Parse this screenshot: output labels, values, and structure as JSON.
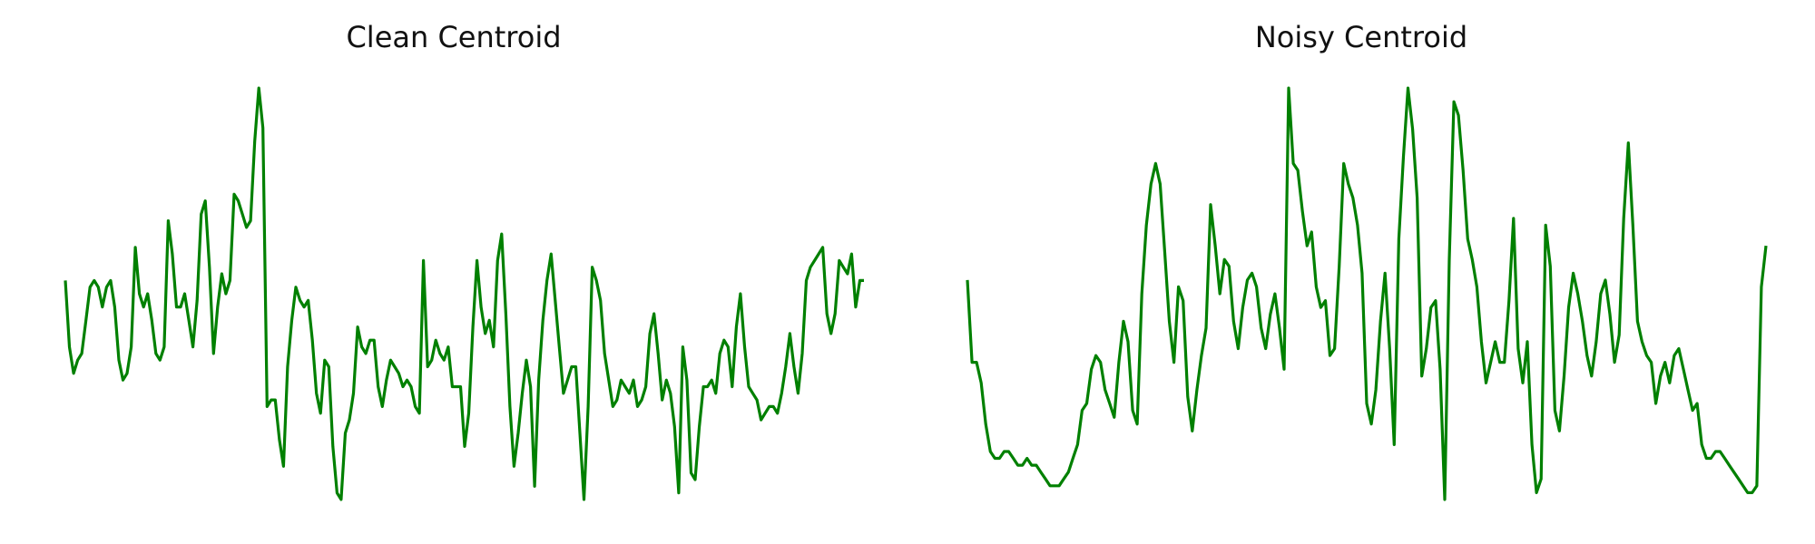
{
  "chart_data": [
    {
      "type": "line",
      "title": "Clean Centroid",
      "xlabel": "",
      "ylabel": "",
      "axes_visible": false,
      "grid": false,
      "line_color": "#008000",
      "series": [
        {
          "values": [
            0.55,
            0.45,
            0.41,
            0.43,
            0.44,
            0.49,
            0.54,
            0.55,
            0.54,
            0.51,
            0.54,
            0.55,
            0.51,
            0.43,
            0.4,
            0.41,
            0.45,
            0.6,
            0.53,
            0.51,
            0.53,
            0.49,
            0.44,
            0.43,
            0.45,
            0.64,
            0.59,
            0.51,
            0.51,
            0.53,
            0.49,
            0.45,
            0.52,
            0.65,
            0.67,
            0.57,
            0.44,
            0.51,
            0.56,
            0.53,
            0.55,
            0.68,
            0.67,
            0.65,
            0.63,
            0.64,
            0.76,
            0.84,
            0.78,
            0.36,
            0.37,
            0.37,
            0.31,
            0.27,
            0.42,
            0.49,
            0.54,
            0.52,
            0.51,
            0.52,
            0.46,
            0.38,
            0.35,
            0.43,
            0.42,
            0.3,
            0.23,
            0.22,
            0.32,
            0.34,
            0.38,
            0.48,
            0.45,
            0.44,
            0.46,
            0.46,
            0.39,
            0.36,
            0.4,
            0.43,
            0.42,
            0.41,
            0.39,
            0.4,
            0.39,
            0.36,
            0.35,
            0.58,
            0.42,
            0.43,
            0.46,
            0.44,
            0.43,
            0.45,
            0.39,
            0.39,
            0.39,
            0.3,
            0.35,
            0.48,
            0.58,
            0.51,
            0.47,
            0.49,
            0.45,
            0.58,
            0.62,
            0.5,
            0.36,
            0.27,
            0.32,
            0.38,
            0.43,
            0.39,
            0.24,
            0.4,
            0.49,
            0.55,
            0.59,
            0.52,
            0.45,
            0.38,
            0.4,
            0.42,
            0.42,
            0.32,
            0.22,
            0.36,
            0.57,
            0.55,
            0.52,
            0.44,
            0.4,
            0.36,
            0.37,
            0.4,
            0.39,
            0.38,
            0.4,
            0.36,
            0.37,
            0.39,
            0.47,
            0.5,
            0.44,
            0.37,
            0.4,
            0.38,
            0.33,
            0.23,
            0.45,
            0.4,
            0.26,
            0.25,
            0.33,
            0.39,
            0.39,
            0.4,
            0.38,
            0.44,
            0.46,
            0.45,
            0.39,
            0.48,
            0.53,
            0.45,
            0.39,
            0.38,
            0.37,
            0.34,
            0.35,
            0.36,
            0.36,
            0.35,
            0.38,
            0.42,
            0.47,
            0.42,
            0.38,
            0.44,
            0.55,
            0.57,
            0.58,
            0.59,
            0.6,
            0.5,
            0.47,
            0.5,
            0.58,
            0.57,
            0.56,
            0.59,
            0.51,
            0.55,
            0.55
          ]
        }
      ]
    },
    {
      "type": "line",
      "title": "Noisy Centroid",
      "xlabel": "",
      "ylabel": "",
      "axes_visible": false,
      "grid": false,
      "line_color": "#008000",
      "series": [
        {
          "values": [
            0.54,
            0.42,
            0.42,
            0.39,
            0.33,
            0.29,
            0.28,
            0.28,
            0.29,
            0.29,
            0.28,
            0.27,
            0.27,
            0.28,
            0.27,
            0.27,
            0.26,
            0.25,
            0.24,
            0.24,
            0.24,
            0.25,
            0.26,
            0.28,
            0.3,
            0.35,
            0.36,
            0.41,
            0.43,
            0.42,
            0.38,
            0.36,
            0.34,
            0.42,
            0.48,
            0.45,
            0.35,
            0.33,
            0.52,
            0.62,
            0.68,
            0.71,
            0.68,
            0.58,
            0.48,
            0.42,
            0.53,
            0.51,
            0.37,
            0.32,
            0.38,
            0.43,
            0.47,
            0.65,
            0.59,
            0.52,
            0.57,
            0.56,
            0.48,
            0.44,
            0.5,
            0.54,
            0.55,
            0.53,
            0.47,
            0.44,
            0.49,
            0.52,
            0.47,
            0.41,
            0.82,
            0.71,
            0.7,
            0.64,
            0.59,
            0.61,
            0.53,
            0.5,
            0.51,
            0.43,
            0.44,
            0.56,
            0.71,
            0.68,
            0.66,
            0.62,
            0.55,
            0.36,
            0.33,
            0.38,
            0.48,
            0.55,
            0.44,
            0.3,
            0.6,
            0.72,
            0.82,
            0.76,
            0.66,
            0.4,
            0.44,
            0.5,
            0.51,
            0.41,
            0.22,
            0.57,
            0.8,
            0.78,
            0.7,
            0.6,
            0.57,
            0.53,
            0.45,
            0.39,
            0.42,
            0.45,
            0.42,
            0.42,
            0.51,
            0.63,
            0.44,
            0.39,
            0.45,
            0.3,
            0.23,
            0.25,
            0.62,
            0.56,
            0.35,
            0.32,
            0.4,
            0.5,
            0.55,
            0.52,
            0.48,
            0.43,
            0.4,
            0.45,
            0.52,
            0.54,
            0.49,
            0.42,
            0.46,
            0.63,
            0.74,
            0.62,
            0.48,
            0.45,
            0.43,
            0.42,
            0.36,
            0.4,
            0.42,
            0.39,
            0.43,
            0.44,
            0.41,
            0.38,
            0.35,
            0.36,
            0.3,
            0.28,
            0.28,
            0.29,
            0.29,
            0.28,
            0.27,
            0.26,
            0.25,
            0.24,
            0.23,
            0.23,
            0.24,
            0.53,
            0.59
          ]
        }
      ]
    }
  ]
}
